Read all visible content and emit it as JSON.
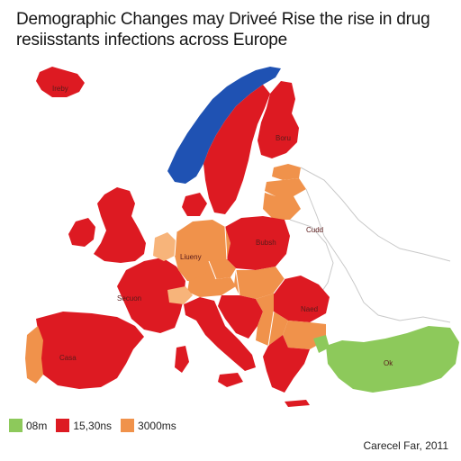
{
  "title": {
    "line1": "Demographic Changes may Driveé Rise the rise in drug",
    "line2": "resiisstants infections across Europe"
  },
  "colors": {
    "red": "#dd1a22",
    "orange": "#f0924b",
    "light_orange": "#f7b47a",
    "green": "#8dc95b",
    "blue": "#1f52b3",
    "border": "#ffffff",
    "outline": "#c9c9c9"
  },
  "map_labels": {
    "norway_area": "Ireby",
    "finland": "Boru",
    "russia": "Cudd",
    "germany": "Liueny",
    "uk": "Secuon",
    "spain": "Casa",
    "turkey": "Ok",
    "poland": "Bubsh",
    "romania": "Naed"
  },
  "legend": [
    {
      "label": "08m",
      "color": "#8dc95b"
    },
    {
      "label": "15,30ns",
      "color": "#dd1a22"
    },
    {
      "label": "3000ms",
      "color": "#f0924b"
    }
  ],
  "credit": "Carecel Far, 2011"
}
